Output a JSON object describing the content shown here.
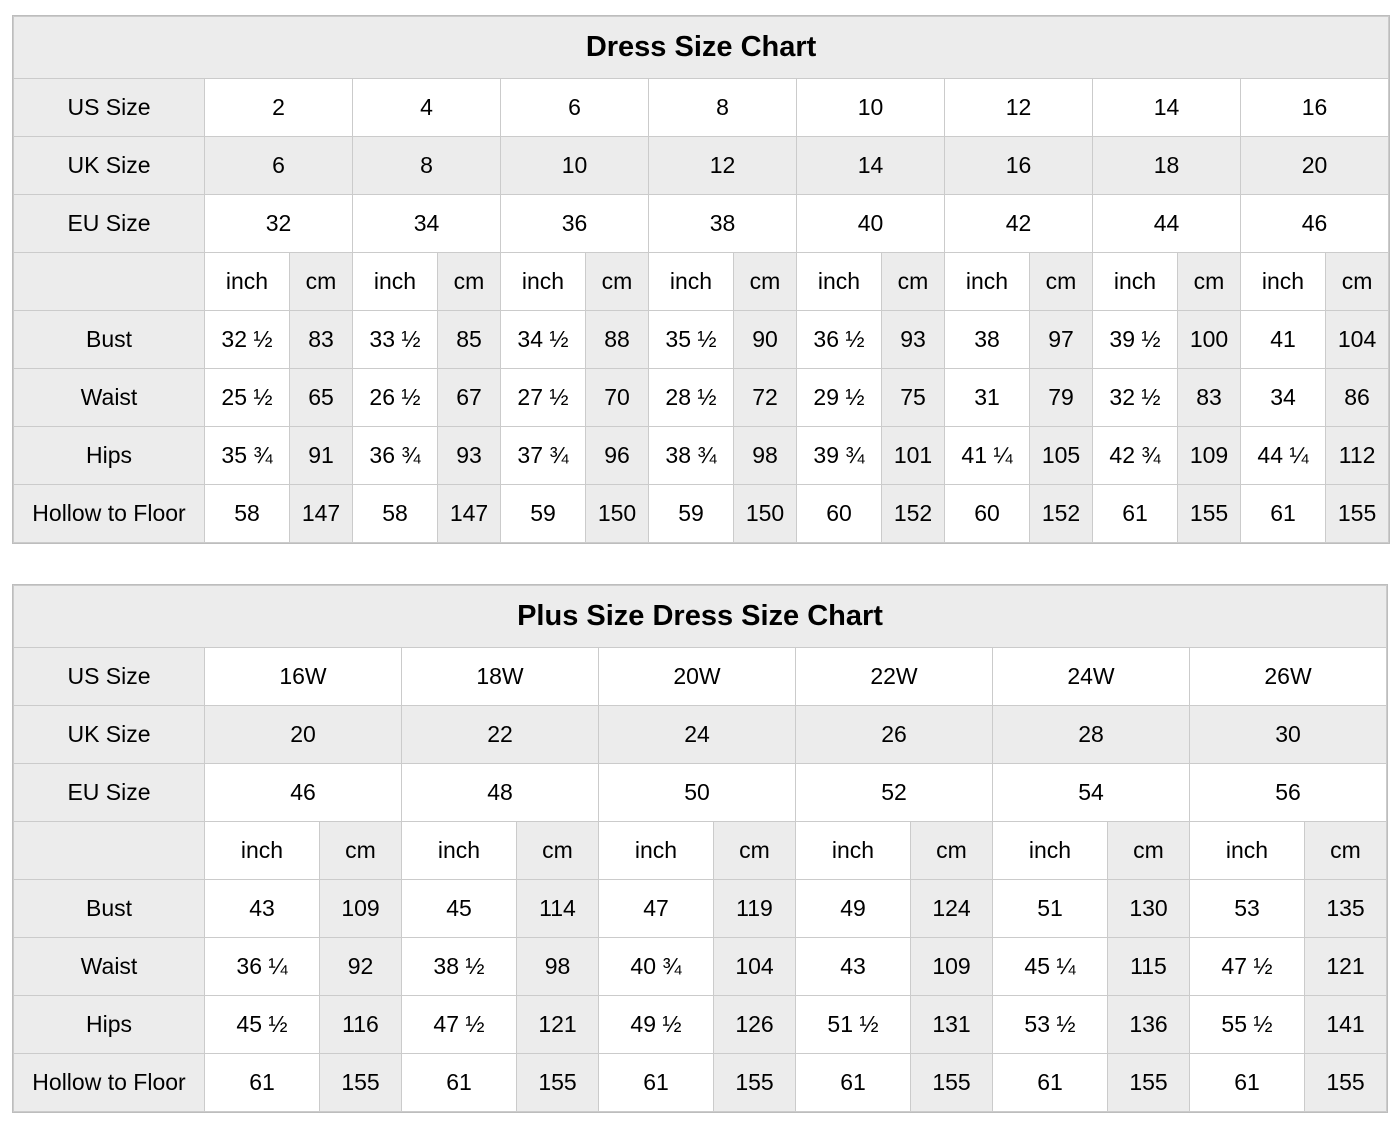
{
  "colors": {
    "page_bg": "#ffffff",
    "shaded_cell_bg": "#ececec",
    "grid_line": "#cbcbcb",
    "text": "#000000"
  },
  "chart_data": [
    {
      "type": "table",
      "title": "Dress Size Chart",
      "size_rows": [
        {
          "label": "US Size",
          "values": [
            "2",
            "4",
            "6",
            "8",
            "10",
            "12",
            "14",
            "16"
          ]
        },
        {
          "label": "UK Size",
          "values": [
            "6",
            "8",
            "10",
            "12",
            "14",
            "16",
            "18",
            "20"
          ]
        },
        {
          "label": "EU Size",
          "values": [
            "32",
            "34",
            "36",
            "38",
            "40",
            "42",
            "44",
            "46"
          ]
        }
      ],
      "unit_labels": {
        "inch": "inch",
        "cm": "cm"
      },
      "measurement_rows": [
        {
          "label": "Bust",
          "inch": [
            "32 ½",
            "33 ½",
            "34 ½",
            "35 ½",
            "36 ½",
            "38",
            "39 ½",
            "41"
          ],
          "cm": [
            "83",
            "85",
            "88",
            "90",
            "93",
            "97",
            "100",
            "104"
          ]
        },
        {
          "label": "Waist",
          "inch": [
            "25 ½",
            "26 ½",
            "27 ½",
            "28 ½",
            "29 ½",
            "31",
            "32 ½",
            "34"
          ],
          "cm": [
            "65",
            "67",
            "70",
            "72",
            "75",
            "79",
            "83",
            "86"
          ]
        },
        {
          "label": "Hips",
          "inch": [
            "35 ¾",
            "36 ¾",
            "37 ¾",
            "38 ¾",
            "39 ¾",
            "41 ¼",
            "42 ¾",
            "44 ¼"
          ],
          "cm": [
            "91",
            "93",
            "96",
            "98",
            "101",
            "105",
            "109",
            "112"
          ]
        },
        {
          "label": "Hollow to Floor",
          "inch": [
            "58",
            "58",
            "59",
            "59",
            "60",
            "60",
            "61",
            "61"
          ],
          "cm": [
            "147",
            "147",
            "150",
            "150",
            "152",
            "152",
            "155",
            "155"
          ]
        }
      ]
    },
    {
      "type": "table",
      "title": "Plus Size Dress Size Chart",
      "size_rows": [
        {
          "label": "US Size",
          "values": [
            "16W",
            "18W",
            "20W",
            "22W",
            "24W",
            "26W"
          ]
        },
        {
          "label": "UK Size",
          "values": [
            "20",
            "22",
            "24",
            "26",
            "28",
            "30"
          ]
        },
        {
          "label": "EU Size",
          "values": [
            "46",
            "48",
            "50",
            "52",
            "54",
            "56"
          ]
        }
      ],
      "unit_labels": {
        "inch": "inch",
        "cm": "cm"
      },
      "measurement_rows": [
        {
          "label": "Bust",
          "inch": [
            "43",
            "45",
            "47",
            "49",
            "51",
            "53"
          ],
          "cm": [
            "109",
            "114",
            "119",
            "124",
            "130",
            "135"
          ]
        },
        {
          "label": "Waist",
          "inch": [
            "36 ¼",
            "38 ½",
            "40 ¾",
            "43",
            "45 ¼",
            "47 ½"
          ],
          "cm": [
            "92",
            "98",
            "104",
            "109",
            "115",
            "121"
          ]
        },
        {
          "label": "Hips",
          "inch": [
            "45 ½",
            "47 ½",
            "49 ½",
            "51 ½",
            "53 ½",
            "55 ½"
          ],
          "cm": [
            "116",
            "121",
            "126",
            "131",
            "136",
            "141"
          ]
        },
        {
          "label": "Hollow to Floor",
          "inch": [
            "61",
            "61",
            "61",
            "61",
            "61",
            "61"
          ],
          "cm": [
            "155",
            "155",
            "155",
            "155",
            "155",
            "155"
          ]
        }
      ]
    }
  ]
}
